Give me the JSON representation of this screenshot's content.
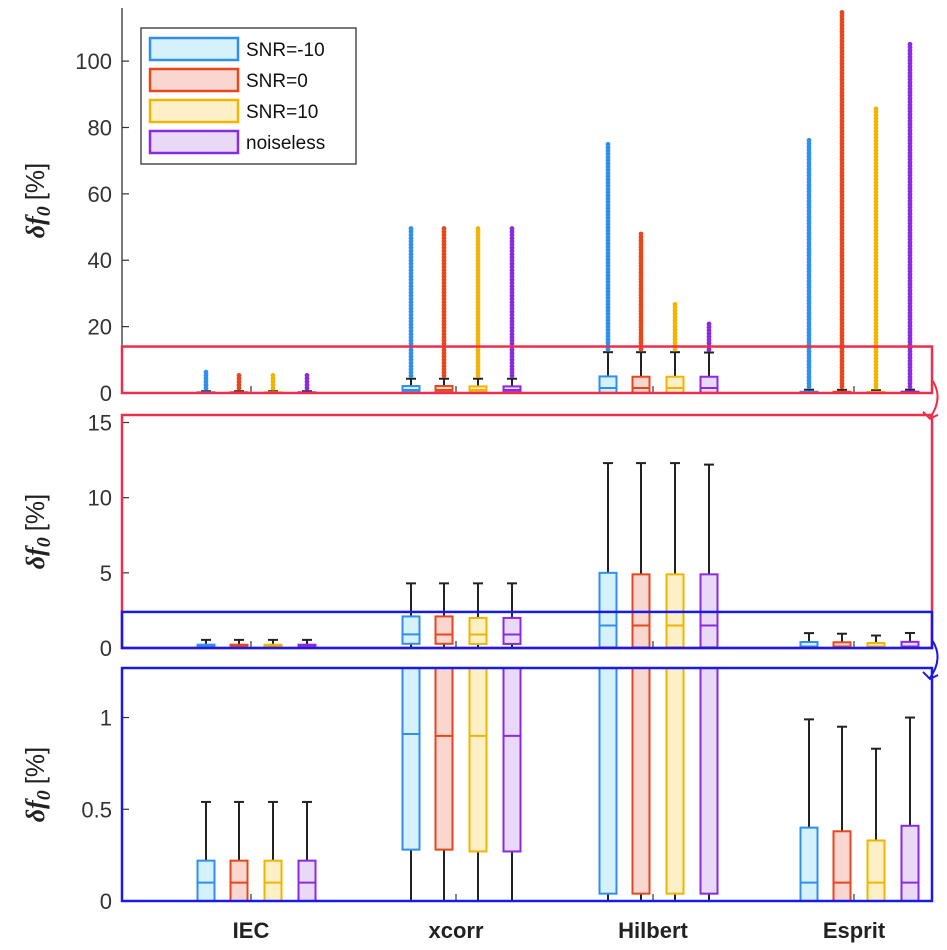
{
  "figure": {
    "colors": {
      "SNR=-10": {
        "stroke": "#2e8ff0",
        "fill": "#d5f1fb"
      },
      "SNR=0": {
        "stroke": "#e8461c",
        "fill": "#f9d6cf"
      },
      "SNR=10": {
        "stroke": "#f1b400",
        "fill": "#fdf0c6"
      },
      "noiseless": {
        "stroke": "#8a2be2",
        "fill": "#ead8f7"
      }
    },
    "zoom_box_colors": {
      "panel1_to_panel2": "#ec2f4b",
      "panel2_to_panel3": "#1a1ae6"
    }
  },
  "chart_data": [
    {
      "type": "box",
      "panel": "top",
      "ylabel_symbol": "δf",
      "ylabel_subscript": "0",
      "ylabel_unit": "[%]",
      "ylim": [
        0,
        116
      ],
      "yticks": [
        0,
        20,
        40,
        60,
        80,
        100
      ],
      "categories": [
        "IEC",
        "xcorr",
        "Hilbert",
        "Esprit"
      ],
      "legend": {
        "position": "top-left",
        "entries": [
          "SNR=-10",
          "SNR=0",
          "SNR=10",
          "noiseless"
        ]
      },
      "zoom_region": [
        0,
        14
      ],
      "series": [
        {
          "name": "SNR=-10",
          "boxes": [
            {
              "q1": 0,
              "median": 0.1,
              "q3": 0.22,
              "whislo": 0,
              "whishi": 0.54,
              "outlier_max": 7
            },
            {
              "q1": 0.28,
              "median": 0.91,
              "q3": 2.1,
              "whislo": 0,
              "whishi": 4.3,
              "outlier_max": 50
            },
            {
              "q1": 0.04,
              "median": 1.5,
              "q3": 5.0,
              "whislo": 0,
              "whishi": 12.3,
              "outlier_max": 75
            },
            {
              "q1": 0,
              "median": 0.1,
              "q3": 0.4,
              "whislo": 0,
              "whishi": 0.99,
              "outlier_max": 77
            }
          ]
        },
        {
          "name": "SNR=0",
          "boxes": [
            {
              "q1": 0,
              "median": 0.1,
              "q3": 0.22,
              "whislo": 0,
              "whishi": 0.54,
              "outlier_max": 6
            },
            {
              "q1": 0.28,
              "median": 0.9,
              "q3": 2.1,
              "whislo": 0,
              "whishi": 4.3,
              "outlier_max": 50
            },
            {
              "q1": 0.04,
              "median": 1.5,
              "q3": 4.9,
              "whislo": 0,
              "whishi": 12.3,
              "outlier_max": 48
            },
            {
              "q1": 0,
              "median": 0.1,
              "q3": 0.38,
              "whislo": 0,
              "whishi": 0.95,
              "outlier_max": 115
            }
          ]
        },
        {
          "name": "SNR=10",
          "boxes": [
            {
              "q1": 0,
              "median": 0.1,
              "q3": 0.22,
              "whislo": 0,
              "whishi": 0.54,
              "outlier_max": 5.5
            },
            {
              "q1": 0.27,
              "median": 0.9,
              "q3": 2.0,
              "whislo": 0,
              "whishi": 4.3,
              "outlier_max": 50
            },
            {
              "q1": 0.04,
              "median": 1.5,
              "q3": 4.9,
              "whislo": 0,
              "whishi": 12.3,
              "outlier_max": 27
            },
            {
              "q1": 0,
              "median": 0.1,
              "q3": 0.33,
              "whislo": 0,
              "whishi": 0.83,
              "outlier_max": 86
            }
          ]
        },
        {
          "name": "noiseless",
          "boxes": [
            {
              "q1": 0,
              "median": 0.1,
              "q3": 0.22,
              "whislo": 0,
              "whishi": 0.54,
              "outlier_max": 6
            },
            {
              "q1": 0.27,
              "median": 0.9,
              "q3": 2.0,
              "whislo": 0,
              "whishi": 4.3,
              "outlier_max": 50
            },
            {
              "q1": 0.04,
              "median": 1.5,
              "q3": 4.9,
              "whislo": 0,
              "whishi": 12.2,
              "outlier_max": 21
            },
            {
              "q1": 0,
              "median": 0.1,
              "q3": 0.41,
              "whislo": 0,
              "whishi": 1.0,
              "outlier_max": 106
            }
          ]
        }
      ]
    },
    {
      "type": "box",
      "panel": "middle",
      "ylabel_symbol": "δf",
      "ylabel_subscript": "0",
      "ylabel_unit": "[%]",
      "ylim": [
        0,
        15.5
      ],
      "yticks": [
        0,
        5,
        10,
        15
      ],
      "zoom_region": [
        0,
        2.4
      ],
      "note": "zoom of top panel, same box statistics"
    },
    {
      "type": "box",
      "panel": "bottom",
      "ylabel_symbol": "δf",
      "ylabel_subscript": "0",
      "ylabel_unit": "[%]",
      "ylim": [
        0,
        1.27
      ],
      "yticks": [
        0,
        0.5,
        1
      ],
      "ytick_labels": [
        "0",
        "0.5",
        "1"
      ],
      "xtick_labels": [
        "IEC",
        "xcorr",
        "Hilbert",
        "Esprit"
      ],
      "note": "zoom of middle panel, same box statistics"
    }
  ]
}
